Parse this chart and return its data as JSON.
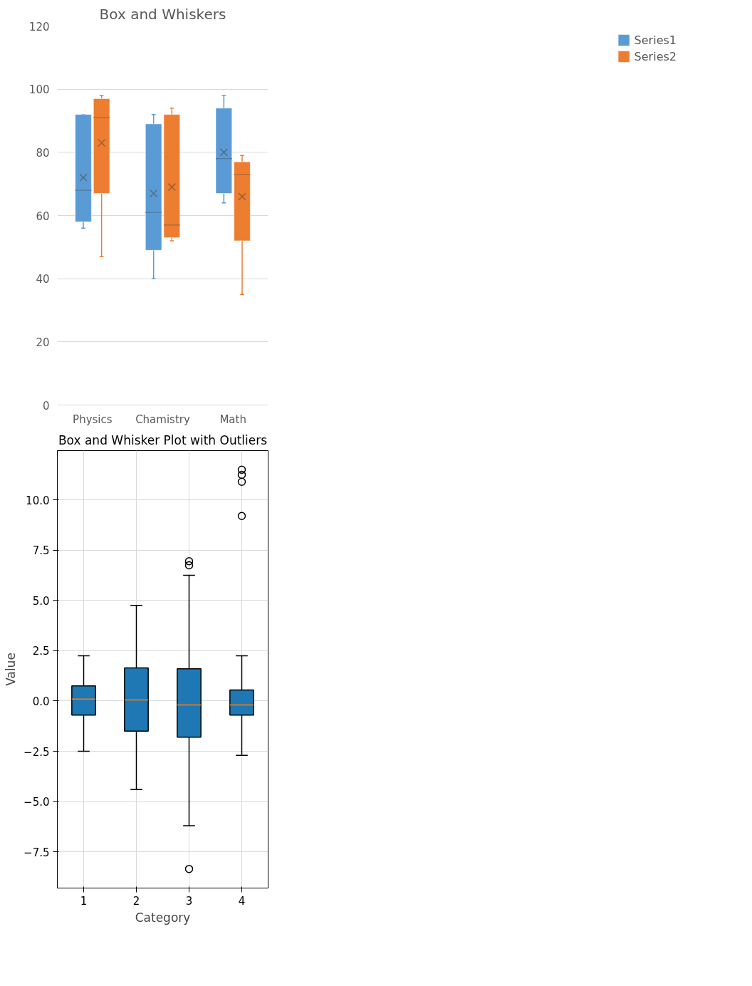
{
  "chart_data": [
    {
      "type": "box",
      "title": "Box and Whiskers",
      "categories": [
        "Physics",
        "Chamistry",
        "Math"
      ],
      "ylim": [
        0,
        120
      ],
      "yticks": [
        0,
        20,
        40,
        60,
        80,
        100,
        120
      ],
      "grid": "y",
      "legend": "right",
      "series": [
        {
          "name": "Series1",
          "color": "#5b9bd5",
          "boxes": [
            {
              "low": 56,
              "q1": 58,
              "median": 68,
              "q3": 92,
              "high": 92,
              "mean": 72
            },
            {
              "low": 40,
              "q1": 49,
              "median": 61,
              "q3": 89,
              "high": 92,
              "mean": 67
            },
            {
              "low": 64,
              "q1": 67,
              "median": 78,
              "q3": 94,
              "high": 98,
              "mean": 80
            }
          ]
        },
        {
          "name": "Series2",
          "color": "#ed7d31",
          "boxes": [
            {
              "low": 47,
              "q1": 67,
              "median": 91,
              "q3": 97,
              "high": 98,
              "mean": 83
            },
            {
              "low": 52,
              "q1": 53,
              "median": 57,
              "q3": 92,
              "high": 94,
              "mean": 69
            },
            {
              "low": 35,
              "q1": 52,
              "median": 73,
              "q3": 77,
              "high": 79,
              "mean": 66
            }
          ]
        }
      ]
    },
    {
      "type": "box",
      "title": "Box and Whisker Plot with Outliers",
      "xlabel": "Category",
      "ylabel": "Value",
      "categories": [
        "1",
        "2",
        "3",
        "4"
      ],
      "ylim": [
        -9.3,
        12.45
      ],
      "yticks": [
        {
          "value": -7.5,
          "label": "−7.5"
        },
        {
          "value": -5,
          "label": "−5.0"
        },
        {
          "value": -2.5,
          "label": "−2.5"
        },
        {
          "value": 0,
          "label": "0.0"
        },
        {
          "value": 2.5,
          "label": "2.5"
        },
        {
          "value": 5,
          "label": "5.0"
        },
        {
          "value": 7.5,
          "label": "7.5"
        },
        {
          "value": 10,
          "label": "10.0"
        }
      ],
      "grid": true,
      "legend": false,
      "series": [
        {
          "color": "#1f77b4",
          "boxes": [
            {
              "low": -2.5,
              "q1": -0.7,
              "median": 0.1,
              "q3": 0.75,
              "high": 2.25
            },
            {
              "low": -4.4,
              "q1": -1.5,
              "median": 0.05,
              "q3": 1.65,
              "high": 4.75
            },
            {
              "low": -6.2,
              "q1": -1.8,
              "median": -0.2,
              "q3": 1.6,
              "high": 6.25,
              "outliers": [
                6.95,
                6.75,
                -8.35
              ]
            },
            {
              "low": -2.7,
              "q1": -0.7,
              "median": -0.2,
              "q3": 0.55,
              "high": 2.25,
              "outliers": [
                11.5,
                11.25,
                10.9,
                9.2
              ]
            }
          ]
        }
      ]
    }
  ]
}
